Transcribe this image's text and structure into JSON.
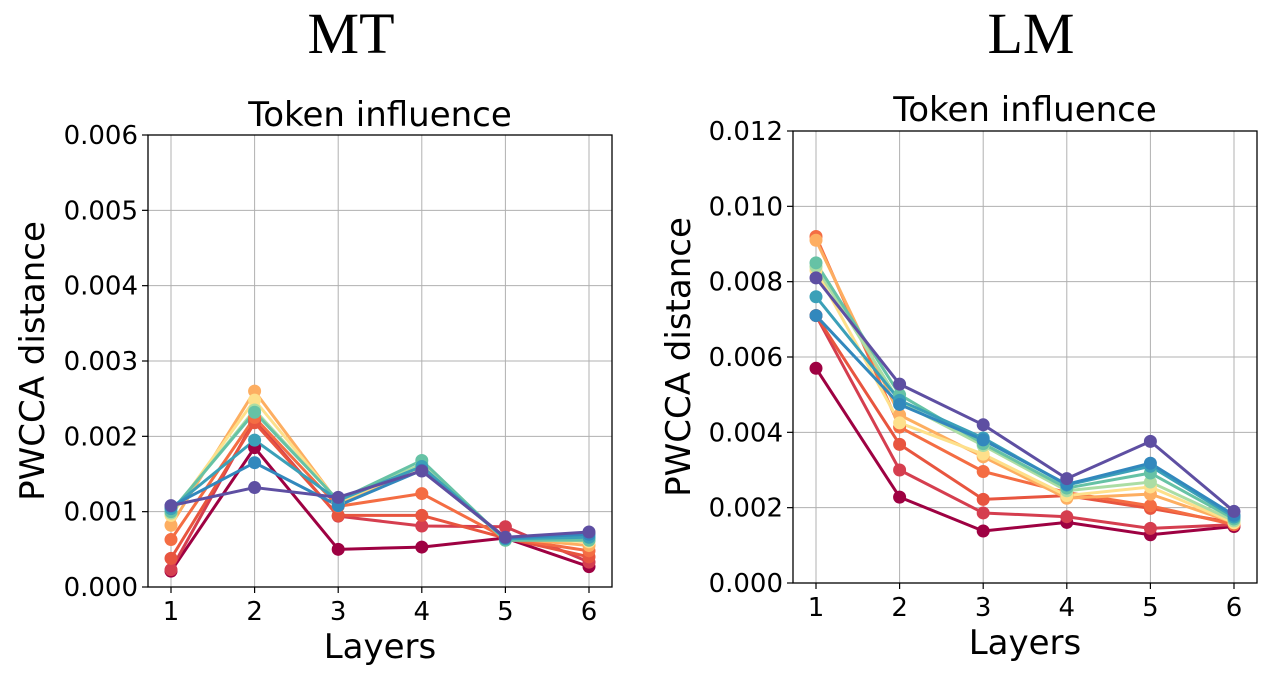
{
  "headers": {
    "mt": "MT",
    "lm": "LM"
  },
  "chart_data": [
    {
      "type": "line",
      "title": "Token influence",
      "xlabel": "Layers",
      "ylabel": "PWCCA distance",
      "x": [
        1,
        2,
        3,
        4,
        5,
        6
      ],
      "xticks": [
        "1",
        "2",
        "3",
        "4",
        "5",
        "6"
      ],
      "yticks": [
        "0.000",
        "0.001",
        "0.002",
        "0.003",
        "0.004",
        "0.005",
        "0.006"
      ],
      "ylim": [
        0,
        0.006
      ],
      "grid": true,
      "series": [
        {
          "color": "#9e0142",
          "values": [
            0.00021,
            0.00185,
            0.0005,
            0.00053,
            0.00065,
            0.00027
          ]
        },
        {
          "color": "#d53e4f",
          "values": [
            0.00023,
            0.00222,
            0.00094,
            0.00081,
            0.0008,
            0.00033
          ]
        },
        {
          "color": "#e8553f",
          "values": [
            0.00038,
            0.00218,
            0.00095,
            0.00095,
            0.00065,
            0.0004
          ]
        },
        {
          "color": "#f46d43",
          "values": [
            0.00063,
            0.00225,
            0.00107,
            0.00124,
            0.00065,
            0.00048
          ]
        },
        {
          "color": "#fdae61",
          "values": [
            0.00082,
            0.0026,
            0.00112,
            0.00155,
            0.00065,
            0.00055
          ]
        },
        {
          "color": "#fee08b",
          "values": [
            0.00095,
            0.00248,
            0.00113,
            0.0016,
            0.00064,
            0.0006
          ]
        },
        {
          "color": "#abdda4",
          "values": [
            0.00098,
            0.00235,
            0.00114,
            0.00163,
            0.00062,
            0.00063
          ]
        },
        {
          "color": "#66c2a5",
          "values": [
            0.001,
            0.00232,
            0.00115,
            0.00168,
            0.00062,
            0.00062
          ]
        },
        {
          "color": "#3ba0b8",
          "values": [
            0.00104,
            0.00195,
            0.00115,
            0.0016,
            0.00064,
            0.00066
          ]
        },
        {
          "color": "#3288bd",
          "values": [
            0.00107,
            0.00165,
            0.00108,
            0.00155,
            0.00065,
            0.0007
          ]
        },
        {
          "color": "#5e4fa2",
          "values": [
            0.00108,
            0.00132,
            0.00119,
            0.00154,
            0.00066,
            0.00073
          ]
        }
      ]
    },
    {
      "type": "line",
      "title": "Token influence",
      "xlabel": "Layers",
      "ylabel": "PWCCA distance",
      "x": [
        1,
        2,
        3,
        4,
        5,
        6
      ],
      "xticks": [
        "1",
        "2",
        "3",
        "4",
        "5",
        "6"
      ],
      "yticks": [
        "0.000",
        "0.002",
        "0.004",
        "0.006",
        "0.008",
        "0.010",
        "0.012"
      ],
      "ylim": [
        0,
        0.012
      ],
      "grid": true,
      "series": [
        {
          "color": "#9e0142",
          "values": [
            0.0057,
            0.00228,
            0.00138,
            0.00161,
            0.00128,
            0.0015
          ]
        },
        {
          "color": "#d53e4f",
          "values": [
            0.0071,
            0.003,
            0.00186,
            0.00176,
            0.00145,
            0.00155
          ]
        },
        {
          "color": "#e8553f",
          "values": [
            0.0071,
            0.00368,
            0.00222,
            0.00232,
            0.00198,
            0.0016
          ]
        },
        {
          "color": "#f46d43",
          "values": [
            0.0092,
            0.00414,
            0.00296,
            0.0024,
            0.00205,
            0.00155
          ]
        },
        {
          "color": "#fdae61",
          "values": [
            0.0091,
            0.00446,
            0.00335,
            0.00225,
            0.00236,
            0.0016
          ]
        },
        {
          "color": "#fee08b",
          "values": [
            0.0083,
            0.00425,
            0.00342,
            0.00232,
            0.00255,
            0.0016
          ]
        },
        {
          "color": "#abdda4",
          "values": [
            0.0084,
            0.0048,
            0.00365,
            0.00245,
            0.00268,
            0.00165
          ]
        },
        {
          "color": "#66c2a5",
          "values": [
            0.0085,
            0.005,
            0.0037,
            0.00252,
            0.00292,
            0.0017
          ]
        },
        {
          "color": "#3ba0b8",
          "values": [
            0.0076,
            0.00485,
            0.00385,
            0.0026,
            0.0031,
            0.00175
          ]
        },
        {
          "color": "#3288bd",
          "values": [
            0.0071,
            0.00474,
            0.0038,
            0.00262,
            0.00318,
            0.0018
          ]
        },
        {
          "color": "#5e4fa2",
          "values": [
            0.0081,
            0.00528,
            0.0042,
            0.00277,
            0.00376,
            0.0019
          ]
        }
      ]
    }
  ]
}
